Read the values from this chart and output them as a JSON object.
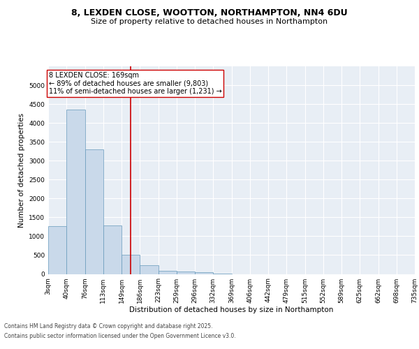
{
  "title_line1": "8, LEXDEN CLOSE, WOOTTON, NORTHAMPTON, NN4 6DU",
  "title_line2": "Size of property relative to detached houses in Northampton",
  "xlabel": "Distribution of detached houses by size in Northampton",
  "ylabel": "Number of detached properties",
  "bins": [
    "3sqm",
    "40sqm",
    "76sqm",
    "113sqm",
    "149sqm",
    "186sqm",
    "223sqm",
    "259sqm",
    "296sqm",
    "332sqm",
    "369sqm",
    "406sqm",
    "442sqm",
    "479sqm",
    "515sqm",
    "552sqm",
    "589sqm",
    "625sqm",
    "662sqm",
    "698sqm",
    "735sqm"
  ],
  "bar_heights": [
    1270,
    4350,
    3300,
    1290,
    500,
    225,
    90,
    60,
    40,
    5,
    0,
    0,
    0,
    0,
    0,
    0,
    0,
    0,
    0,
    0
  ],
  "bar_color": "#c9d9ea",
  "bar_edgecolor": "#6699bb",
  "vline_index": 4.486,
  "annotation_text": "8 LEXDEN CLOSE: 169sqm\n← 89% of detached houses are smaller (9,803)\n11% of semi-detached houses are larger (1,231) →",
  "annotation_box_color": "#ffffff",
  "annotation_border_color": "#cc0000",
  "vline_color": "#cc0000",
  "ylim": [
    0,
    5500
  ],
  "yticks": [
    0,
    500,
    1000,
    1500,
    2000,
    2500,
    3000,
    3500,
    4000,
    4500,
    5000
  ],
  "background_color": "#e8eef5",
  "footer_line1": "Contains HM Land Registry data © Crown copyright and database right 2025.",
  "footer_line2": "Contains public sector information licensed under the Open Government Licence v3.0.",
  "title_fontsize": 9,
  "subtitle_fontsize": 8,
  "axis_label_fontsize": 7.5,
  "tick_fontsize": 6.5,
  "annotation_fontsize": 7,
  "footer_fontsize": 5.5
}
